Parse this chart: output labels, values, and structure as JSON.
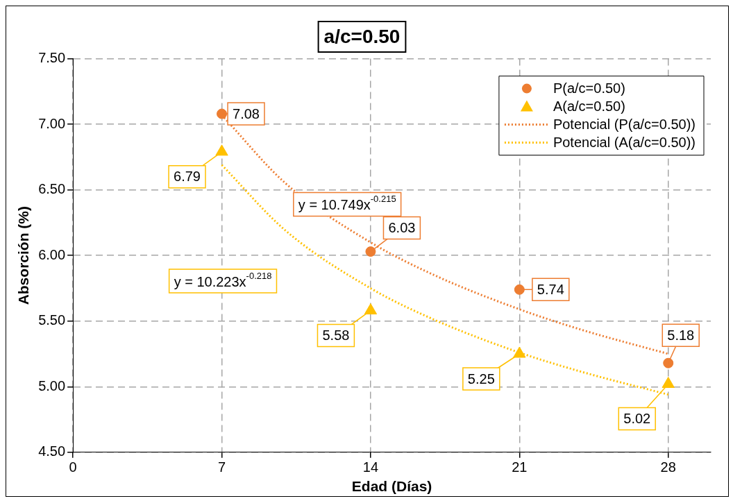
{
  "chart_data": {
    "type": "scatter",
    "title": "a/c=0.50",
    "xlabel": "Edad (Días)",
    "ylabel": "Absorción (%)",
    "xlim": [
      0,
      30
    ],
    "xticks": [
      0,
      7,
      14,
      21,
      28
    ],
    "ylim": [
      4.5,
      7.5
    ],
    "yticks": [
      {
        "value": 4.5,
        "label": "4.50"
      },
      {
        "value": 5,
        "label": "5.00"
      },
      {
        "value": 5.5,
        "label": "5.50"
      },
      {
        "value": 6,
        "label": "6.00"
      },
      {
        "value": 6.5,
        "label": "6.50"
      },
      {
        "value": 7,
        "label": "7.00"
      },
      {
        "value": 7.5,
        "label": "7.50"
      }
    ],
    "grid": true,
    "legend": "top right",
    "series": [
      {
        "name": "P(a/c=0.50)",
        "type": "scatter",
        "marker": "circle",
        "color": "#ed7d31",
        "x": [
          7,
          14,
          21,
          28
        ],
        "values": [
          7.08,
          6.03,
          5.74,
          5.18
        ],
        "value_labels": [
          "7.08",
          "6.03",
          "5.74",
          "5.18"
        ]
      },
      {
        "name": "A(a/c=0.50)",
        "type": "scatter",
        "marker": "triangle",
        "color": "#ffc000",
        "x": [
          7,
          14,
          21,
          28
        ],
        "values": [
          6.79,
          5.58,
          5.25,
          5.02
        ],
        "value_labels": [
          "6.79",
          "5.58",
          "5.25",
          "5.02"
        ]
      },
      {
        "name": "Potencial (P(a/c=0.50))",
        "type": "line",
        "marker": "none",
        "line_style": "dotted",
        "color": "#ed7d31",
        "x": [
          7,
          10,
          14,
          17,
          21,
          24,
          28
        ],
        "values": [
          7.07,
          6.55,
          6.1,
          5.85,
          5.59,
          5.43,
          5.25
        ]
      },
      {
        "name": "Potencial (A(a/c=0.50))",
        "type": "line",
        "marker": "none",
        "line_style": "dotted",
        "color": "#ffc000",
        "x": [
          7,
          10,
          14,
          17,
          21,
          24,
          28
        ],
        "values": [
          6.69,
          6.19,
          5.75,
          5.51,
          5.26,
          5.11,
          4.94
        ]
      }
    ],
    "annotations": [
      "y = 10.749x$^{-0.215}$",
      "y = 10.223x$^{-0.218}$"
    ]
  }
}
